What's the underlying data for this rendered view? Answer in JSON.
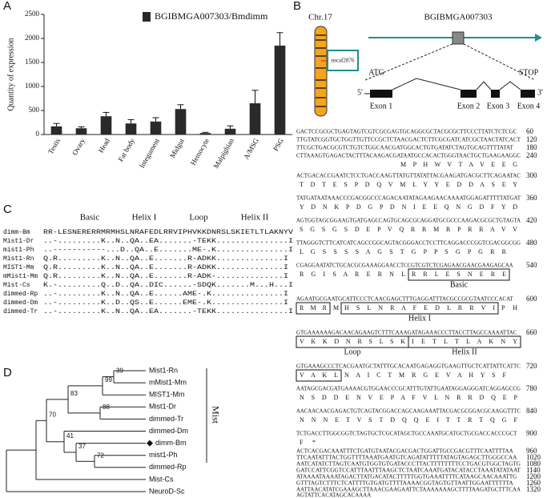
{
  "chart_data": {
    "type": "bar",
    "y_label": "Quantity of expression",
    "categories": [
      "Testis",
      "Ovary",
      "Head",
      "Fat body",
      "Integument",
      "Midgut",
      "Hemocyte",
      "Malpighian",
      "A/MSG",
      "PSG"
    ],
    "series": [
      {
        "name": "BGIBMGA007303/Bmdimm",
        "color": "#2a2a2a",
        "values": [
          170,
          130,
          380,
          230,
          270,
          530,
          30,
          120,
          650,
          1850
        ],
        "errors": [
          60,
          30,
          80,
          80,
          80,
          90,
          15,
          60,
          270,
          270
        ]
      }
    ],
    "ylim": [
      0,
      2500
    ],
    "yticks": [
      0,
      500,
      1000,
      1500,
      2000,
      2500
    ],
    "grid": false
  },
  "panel_labels": [
    "A",
    "B",
    "C",
    "D"
  ],
  "gene_map": {
    "chromosome": "Chr.17",
    "scaffold": "nscaf2876",
    "gene": "BGIBMGA007303",
    "start": "ATG",
    "stop": "STOP",
    "five_prime": "5'",
    "three_prime": "3'",
    "exons": [
      "Exon 1",
      "Exon 2",
      "Exon 3",
      "Exon 4"
    ]
  },
  "sequence": {
    "rows": [
      {
        "nt": "GACTCCGCGCTGAGTAGTCGTCGCGAGTGCAGGCGCTACGCGCTTCCCTTATCTCTCGC",
        "position": 60
      },
      {
        "nt": "TTGTATCGGTGCTGGTTGTTCCGCTCTAACGACTCTTCGCGATCATCGCTAACTATCACT",
        "position": 120
      },
      {
        "nt": "TTCGCTGACGCGTCTGTCTGGCAACGATGGCACTGTGATATCTAGTGCAGTTTTATAT",
        "position": 180
      },
      {
        "nt": "CTTAAAGTGAGACTACTTTACAAGACGATAATGCCACACTGGGTAACTGCTGAAGAAGGC",
        "position": 240
      },
      {
        "nt": "ACTGACACCGAATCTCCTGACCAAGTTATGTTATATTACGAAGATGACGCTTCAGAATAC",
        "position": 300
      },
      {
        "nt": "TATGATAATAAACCCGACGGCCCAGACAATATAGAAGAACAAAATGGAGATTTTTATGAT",
        "position": 360
      },
      {
        "nt": "AGTGGTAGCGGAAGTGATGAGCCAGTGCAGCGCAGGATGCGCCCAAGACGCGCTGTAGTA",
        "position": 420
      },
      {
        "nt": "TTAGGGTCTTCATCATCAGCCGGCAGTACGGGACCTCCTTCAGGACCCGGTCGACGGCGG",
        "position": 480
      },
      {
        "nt": "CGAGGAATATCTGCACGCGAAAGGAACCTCCGTCGTCTCGAGAACGAACGAAGAGCAA",
        "position": 540
      },
      {
        "nt": "AGAATGCGAATGCATTCCCTCAACGAGCTTTGAGGATTTACGCCGCGTAATCCCACAT",
        "position": 600
      },
      {
        "nt": "GTGAAAAAAGACAACAGAAGTCTTTCAAAGATAGAAACCCTTACCTTAGCCAAAATTAC",
        "position": 660
      },
      {
        "nt": "GTGAAAGCCCTCACGAATGCTATTTGCACAATGAGAGGTGAAGTTGCTCATTATTCATTC",
        "position": 720
      },
      {
        "nt": "AATAGCGACGATGAAAACGTGGAACCCGCATTTGTATTGAATAGGAGGGATCAGGAGCCG",
        "position": 780
      },
      {
        "nt": "AACAACAACGAGACTGTCAGTACGGACCAGCAAGAAATTACGACGCGGACGCAAGGTTTC",
        "position": 840
      },
      {
        "nt": "TCTGACCTTGGCGGTCTAGTGCTCGCATAGCTGCCAAATGCATGCTGCGACCACCCGCT",
        "position": 900
      },
      {
        "nt": "ACTCACGACAAATTTCTGATGTAATACGACGACTGGATTGCCGACGTTTCAATTTTAA",
        "position": 960
      },
      {
        "nt": "TTCAATATTTACTGGTTTTAAATGAATGTCAGATATTTTTATAGTAGAGCTTGGGCCAA",
        "position": 1020
      },
      {
        "nt": "AATCATATCTTAGTCAATGTGGTGTGATACCCTTACTTTTTTTTCCTGACGTGGCTAGTG",
        "position": 1080
      },
      {
        "nt": "GATCCATTCGGTCCATTTAATTTAAGCTCTAATCAAATGATACATACCTAAATATATAAT",
        "position": 1140
      },
      {
        "nt": "ATAAAATAAAATAGACTTATGACATACTTTTTGGTGAAATTTTCATAAGCAACAAATTG",
        "position": 1200
      },
      {
        "nt": "GTTTAGTCTTTCTCATTTTGTGATGTTTTAAAACGGTAGTGTTAATTGGAATTTTTTA",
        "position": 1260
      },
      {
        "nt": "AATTAACATATCGAAAGCTTAAACGAAGAATTCTAAAAAAAGCTTTTAAGATGCTTTCAA",
        "position": 1320
      },
      {
        "nt": "AGTATTCACATAGCACAAAA"
      }
    ],
    "protein": [
      [
        "M P H W V T A V E E G"
      ],
      [
        "T D T E S P D Q V M L Y Y E D D A S E Y"
      ],
      [
        "Y D N K P D G P D N I E E Q N G D F Y D"
      ],
      [
        "S G S G S D E P V Q R R M R P R R A V V"
      ],
      [
        "L G S S S S A G S T G P P S G P G R R"
      ],
      [
        "R G I S A R E R N L",
        "R R L E S N E R E"
      ],
      [
        "R M R",
        "M",
        "H S L N R A F E D L R R V I",
        "P H"
      ],
      [
        "V K K D N R S L S K",
        "I E T L T L A K N Y"
      ],
      [
        "V A K L",
        "N A I C T M R G E V A H Y S F"
      ],
      [
        "N S D D E N V E P A F V L N R R D Q E P"
      ],
      [
        "N N N E T V S T D Q Q E I T T R T Q G F"
      ],
      [
        "F *"
      ]
    ],
    "domains": [
      "Basic",
      "Helix I",
      "Loop",
      "Helix II"
    ]
  },
  "alignment": {
    "regions": [
      "Basic",
      "Helix I",
      "Loop",
      "Helix II"
    ],
    "rows": [
      {
        "name": "dimm-Bm",
        "seq": "RR-LESNERERRMRMHSLNRAFEDLRRVIPHVKKDNRSLSKIETLTLAKNYV"
      },
      {
        "name": "Mist1-Dr",
        "seq": "..-.........K..N..QA..EA.......-TEKK...............I"
      },
      {
        "name": "mist1-Ph",
        "seq": "..-----------...D..QA..E.......ME-.K...............I"
      },
      {
        "name": "Mist1-Rn",
        "seq": "Q.R.........K..N..QA..E.......R-ADKK..............I"
      },
      {
        "name": "MIST1-Mm",
        "seq": "Q.R.........K..N..QA..E.......R-ADKK..............I"
      },
      {
        "name": "mMist1-Mm",
        "seq": "Q.R.........K..N..QA..E.......R-ADK-..............I"
      },
      {
        "name": "Mist-Cs",
        "seq": "K.-.........Q..D..QA..DIC......-SDQK.......M...H...I"
      },
      {
        "name": "dimmed-Rp",
        "seq": "..-.........K..N..QA..E......AME-.K...............I"
      },
      {
        "name": "dimmed-Dm",
        "seq": "..-.........K..D..QS..E......EME-.K...............I"
      },
      {
        "name": "dimmed-Tr",
        "seq": "..-.........K..N..QA..EA.......-TEKK...............I"
      }
    ]
  },
  "tree": {
    "leaves": [
      "Mist1-Rn",
      "mMist1-Mm",
      "MIST1-Mm",
      "Mist1-Dr",
      "dimmed-Tr",
      "dimmed-Dm",
      "dimm-Bm",
      "mist1-Ph",
      "dimmed-Rp",
      "Mist-Cs",
      "NeuroD-Sc"
    ],
    "bootstrap": [
      "39",
      "99",
      "88",
      "83",
      "72",
      "37",
      "41",
      "70"
    ],
    "clade": "Mist"
  }
}
